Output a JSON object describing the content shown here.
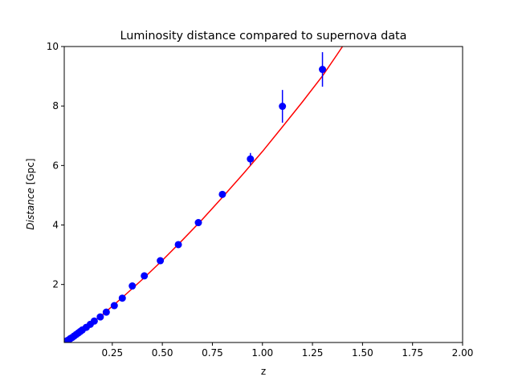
{
  "chart_data": {
    "type": "scatter",
    "title": "Luminosity distance compared to supernova data",
    "xlabel": "z",
    "ylabel_italic": "Distance",
    "ylabel_unit": " [Gpc]",
    "xlim": [
      0.01,
      2.0
    ],
    "ylim": [
      0.05,
      10.0
    ],
    "x_ticks": [
      {
        "value": 0.25,
        "label": "0.25"
      },
      {
        "value": 0.5,
        "label": "0.50"
      },
      {
        "value": 0.75,
        "label": "0.75"
      },
      {
        "value": 1.0,
        "label": "1.00"
      },
      {
        "value": 1.25,
        "label": "1.25"
      },
      {
        "value": 1.5,
        "label": "1.50"
      },
      {
        "value": 1.75,
        "label": "1.75"
      },
      {
        "value": 2.0,
        "label": "2.00"
      }
    ],
    "y_ticks": [
      {
        "value": 2,
        "label": "2"
      },
      {
        "value": 4,
        "label": "4"
      },
      {
        "value": 6,
        "label": "6"
      },
      {
        "value": 8,
        "label": "8"
      },
      {
        "value": 10,
        "label": "10"
      }
    ],
    "grid": false,
    "series": [
      {
        "type": "scatter",
        "color": "#0000ff",
        "points": [
          {
            "x": 0.01,
            "y": 0.04,
            "err": 0.0
          },
          {
            "x": 0.015,
            "y": 0.07,
            "err": 0.0
          },
          {
            "x": 0.02,
            "y": 0.09,
            "err": 0.0
          },
          {
            "x": 0.025,
            "y": 0.11,
            "err": 0.0
          },
          {
            "x": 0.03,
            "y": 0.13,
            "err": 0.0
          },
          {
            "x": 0.04,
            "y": 0.18,
            "err": 0.0
          },
          {
            "x": 0.05,
            "y": 0.22,
            "err": 0.0
          },
          {
            "x": 0.06,
            "y": 0.27,
            "err": 0.0
          },
          {
            "x": 0.07,
            "y": 0.32,
            "err": 0.0
          },
          {
            "x": 0.08,
            "y": 0.37,
            "err": 0.0
          },
          {
            "x": 0.09,
            "y": 0.42,
            "err": 0.0
          },
          {
            "x": 0.1,
            "y": 0.47,
            "err": 0.0
          },
          {
            "x": 0.12,
            "y": 0.56,
            "err": 0.0
          },
          {
            "x": 0.14,
            "y": 0.66,
            "err": 0.0
          },
          {
            "x": 0.16,
            "y": 0.77,
            "err": 0.0
          },
          {
            "x": 0.19,
            "y": 0.91,
            "err": 0.0
          },
          {
            "x": 0.22,
            "y": 1.07,
            "err": 0.0
          },
          {
            "x": 0.26,
            "y": 1.29,
            "err": 0.0
          },
          {
            "x": 0.3,
            "y": 1.54,
            "err": 0.0
          },
          {
            "x": 0.35,
            "y": 1.95,
            "err": 0.0
          },
          {
            "x": 0.41,
            "y": 2.29,
            "err": 0.0
          },
          {
            "x": 0.49,
            "y": 2.8,
            "err": 0.0
          },
          {
            "x": 0.58,
            "y": 3.34,
            "err": 0.0
          },
          {
            "x": 0.68,
            "y": 4.08,
            "err": 0.0
          },
          {
            "x": 0.8,
            "y": 5.03,
            "err": 0.0
          },
          {
            "x": 0.94,
            "y": 6.22,
            "err": 0.2
          },
          {
            "x": 1.1,
            "y": 7.99,
            "err": 0.55
          },
          {
            "x": 1.3,
            "y": 9.23,
            "err": 0.58
          }
        ]
      },
      {
        "type": "line",
        "color": "#ff0000",
        "points": [
          {
            "x": 0.01,
            "y": 0.04
          },
          {
            "x": 0.1,
            "y": 0.46
          },
          {
            "x": 0.2,
            "y": 0.98
          },
          {
            "x": 0.3,
            "y": 1.56
          },
          {
            "x": 0.4,
            "y": 2.17
          },
          {
            "x": 0.5,
            "y": 2.81
          },
          {
            "x": 0.6,
            "y": 3.49
          },
          {
            "x": 0.7,
            "y": 4.19
          },
          {
            "x": 0.8,
            "y": 4.93
          },
          {
            "x": 0.9,
            "y": 5.69
          },
          {
            "x": 1.0,
            "y": 6.47
          },
          {
            "x": 1.1,
            "y": 7.3
          },
          {
            "x": 1.2,
            "y": 8.14
          },
          {
            "x": 1.3,
            "y": 9.01
          },
          {
            "x": 1.37,
            "y": 9.7
          },
          {
            "x": 1.4,
            "y": 10.0
          }
        ]
      }
    ]
  }
}
